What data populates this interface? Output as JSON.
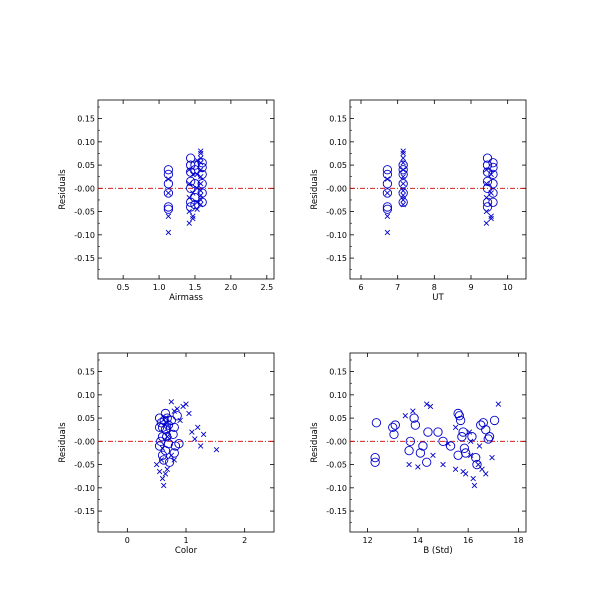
{
  "colors": {
    "marker": "#0000cc",
    "zero_line": "#cc0000",
    "frame": "#000000",
    "background": "#ffffff"
  },
  "chart_data": [
    {
      "type": "scatter",
      "xlabel": "Airmass",
      "ylabel": "Residuals",
      "xlim": [
        0.15,
        2.6
      ],
      "ylim": [
        -0.195,
        0.19
      ],
      "xticks": [
        "0.5",
        "1.0",
        "1.5",
        "2.0",
        "2.5"
      ],
      "yticks": [
        "-0.15",
        "-0.10",
        "-0.05",
        "-0.00",
        "0.05",
        "0.10",
        "0.15"
      ],
      "zero_line": 0,
      "series": [
        {
          "marker": "circle",
          "points": [
            [
              1.13,
              0.04
            ],
            [
              1.13,
              0.03
            ],
            [
              1.13,
              0.01
            ],
            [
              1.13,
              -0.01
            ],
            [
              1.13,
              -0.04
            ],
            [
              1.13,
              -0.045
            ],
            [
              1.44,
              0.065
            ],
            [
              1.44,
              0.05
            ],
            [
              1.44,
              0.035
            ],
            [
              1.44,
              0.015
            ],
            [
              1.44,
              0.0
            ],
            [
              1.44,
              -0.03
            ],
            [
              1.44,
              -0.04
            ],
            [
              1.5,
              0.05
            ],
            [
              1.5,
              0.04
            ],
            [
              1.5,
              0.01
            ],
            [
              1.5,
              -0.02
            ],
            [
              1.5,
              -0.035
            ],
            [
              1.6,
              0.055
            ],
            [
              1.6,
              0.045
            ],
            [
              1.6,
              0.03
            ],
            [
              1.6,
              0.01
            ],
            [
              1.6,
              -0.01
            ],
            [
              1.6,
              -0.03
            ]
          ]
        },
        {
          "marker": "x",
          "points": [
            [
              1.13,
              0.02
            ],
            [
              1.13,
              -0.01
            ],
            [
              1.13,
              -0.06
            ],
            [
              1.13,
              -0.095
            ],
            [
              1.42,
              0.04
            ],
            [
              1.42,
              0.01
            ],
            [
              1.42,
              -0.02
            ],
            [
              1.42,
              -0.05
            ],
            [
              1.42,
              -0.075
            ],
            [
              1.47,
              0.03
            ],
            [
              1.47,
              -0.01
            ],
            [
              1.47,
              -0.06
            ],
            [
              1.47,
              -0.065
            ],
            [
              1.53,
              0.06
            ],
            [
              1.53,
              0.03
            ],
            [
              1.53,
              0.0
            ],
            [
              1.53,
              -0.03
            ],
            [
              1.53,
              -0.045
            ],
            [
              1.58,
              0.08
            ],
            [
              1.58,
              0.075
            ],
            [
              1.58,
              0.065
            ],
            [
              1.58,
              0.055
            ],
            [
              1.58,
              0.04
            ],
            [
              1.58,
              0.025
            ],
            [
              1.58,
              0.01
            ],
            [
              1.58,
              -0.005
            ],
            [
              1.58,
              -0.015
            ],
            [
              1.58,
              -0.025
            ],
            [
              1.58,
              -0.035
            ]
          ]
        }
      ]
    },
    {
      "type": "scatter",
      "xlabel": "UT",
      "ylabel": "Residuals",
      "xlim": [
        5.7,
        10.5
      ],
      "ylim": [
        -0.195,
        0.19
      ],
      "xticks": [
        "6",
        "7",
        "8",
        "9",
        "10"
      ],
      "yticks": [
        "-0.15",
        "-0.10",
        "-0.05",
        "-0.00",
        "0.05",
        "0.10",
        "0.15"
      ],
      "zero_line": 0,
      "series": [
        {
          "marker": "circle",
          "points": [
            [
              6.72,
              0.04
            ],
            [
              6.72,
              0.03
            ],
            [
              6.72,
              0.01
            ],
            [
              6.72,
              -0.01
            ],
            [
              6.72,
              -0.04
            ],
            [
              6.72,
              -0.045
            ],
            [
              7.15,
              0.05
            ],
            [
              7.15,
              0.04
            ],
            [
              7.15,
              0.03
            ],
            [
              7.15,
              0.01
            ],
            [
              7.15,
              -0.01
            ],
            [
              7.15,
              -0.03
            ],
            [
              9.45,
              0.065
            ],
            [
              9.45,
              0.05
            ],
            [
              9.45,
              0.035
            ],
            [
              9.45,
              0.015
            ],
            [
              9.45,
              0.0
            ],
            [
              9.45,
              -0.03
            ],
            [
              9.45,
              -0.04
            ],
            [
              9.6,
              0.055
            ],
            [
              9.6,
              0.045
            ],
            [
              9.6,
              0.03
            ],
            [
              9.6,
              0.01
            ],
            [
              9.6,
              -0.01
            ],
            [
              9.6,
              -0.03
            ]
          ]
        },
        {
          "marker": "x",
          "points": [
            [
              6.72,
              0.02
            ],
            [
              6.72,
              -0.01
            ],
            [
              6.72,
              -0.06
            ],
            [
              6.72,
              -0.095
            ],
            [
              7.15,
              0.08
            ],
            [
              7.15,
              0.075
            ],
            [
              7.15,
              0.065
            ],
            [
              7.15,
              0.055
            ],
            [
              7.15,
              0.04
            ],
            [
              7.15,
              0.025
            ],
            [
              7.15,
              0.01
            ],
            [
              7.15,
              -0.005
            ],
            [
              7.15,
              -0.015
            ],
            [
              7.15,
              -0.025
            ],
            [
              7.15,
              -0.035
            ],
            [
              9.42,
              0.04
            ],
            [
              9.42,
              0.01
            ],
            [
              9.42,
              -0.02
            ],
            [
              9.42,
              -0.05
            ],
            [
              9.42,
              -0.075
            ],
            [
              9.55,
              0.03
            ],
            [
              9.55,
              -0.01
            ],
            [
              9.55,
              -0.06
            ],
            [
              9.55,
              -0.065
            ]
          ]
        }
      ]
    },
    {
      "type": "scatter",
      "xlabel": "Color",
      "ylabel": "Residuals",
      "xlim": [
        -0.5,
        2.5
      ],
      "ylim": [
        -0.195,
        0.19
      ],
      "xticks": [
        "0",
        "1",
        "2"
      ],
      "yticks": [
        "-0.15",
        "-0.10",
        "-0.05",
        "-0.00",
        "0.05",
        "0.10",
        "0.15"
      ],
      "zero_line": 0,
      "series": [
        {
          "marker": "circle",
          "points": [
            [
              0.55,
              0.05
            ],
            [
              0.58,
              0.04
            ],
            [
              0.55,
              0.03
            ],
            [
              0.6,
              0.01
            ],
            [
              0.57,
              0.0
            ],
            [
              0.55,
              -0.01
            ],
            [
              0.6,
              -0.03
            ],
            [
              0.62,
              -0.04
            ],
            [
              0.65,
              0.06
            ],
            [
              0.68,
              0.05
            ],
            [
              0.7,
              0.035
            ],
            [
              0.65,
              0.025
            ],
            [
              0.67,
              0.01
            ],
            [
              0.7,
              -0.005
            ],
            [
              0.65,
              -0.02
            ],
            [
              0.72,
              -0.045
            ],
            [
              0.75,
              0.045
            ],
            [
              0.8,
              0.03
            ],
            [
              0.78,
              0.015
            ],
            [
              0.82,
              -0.01
            ],
            [
              0.8,
              -0.025
            ],
            [
              0.6,
              0.03
            ],
            [
              0.63,
              0.045
            ],
            [
              0.85,
              0.055
            ],
            [
              0.88,
              -0.005
            ]
          ]
        },
        {
          "marker": "x",
          "points": [
            [
              0.5,
              -0.05
            ],
            [
              0.55,
              -0.065
            ],
            [
              0.6,
              -0.08
            ],
            [
              0.62,
              -0.095
            ],
            [
              0.65,
              -0.07
            ],
            [
              0.68,
              -0.06
            ],
            [
              0.7,
              0.02
            ],
            [
              0.72,
              0.005
            ],
            [
              0.75,
              0.085
            ],
            [
              0.8,
              0.065
            ],
            [
              0.85,
              0.07
            ],
            [
              0.9,
              0.045
            ],
            [
              0.95,
              0.075
            ],
            [
              1.0,
              0.08
            ],
            [
              1.05,
              0.06
            ],
            [
              1.1,
              0.02
            ],
            [
              1.15,
              0.005
            ],
            [
              1.2,
              0.03
            ],
            [
              1.25,
              -0.01
            ],
            [
              1.3,
              0.015
            ],
            [
              1.52,
              -0.018
            ],
            [
              0.65,
              0.05
            ],
            [
              0.7,
              0.035
            ],
            [
              0.6,
              -0.015
            ],
            [
              0.75,
              -0.03
            ],
            [
              0.8,
              -0.04
            ],
            [
              0.58,
              -0.04
            ],
            [
              0.68,
              0.01
            ]
          ]
        }
      ]
    },
    {
      "type": "scatter",
      "xlabel": "B (Std)",
      "ylabel": "Residuals",
      "xlim": [
        11.3,
        18.3
      ],
      "ylim": [
        -0.195,
        0.19
      ],
      "xticks": [
        "12",
        "14",
        "16",
        "18"
      ],
      "yticks": [
        "-0.15",
        "-0.10",
        "-0.05",
        "-0.00",
        "0.05",
        "0.10",
        "0.15"
      ],
      "zero_line": 0,
      "series": [
        {
          "marker": "circle",
          "points": [
            [
              12.35,
              0.04
            ],
            [
              12.3,
              -0.035
            ],
            [
              12.3,
              -0.045
            ],
            [
              13.0,
              0.03
            ],
            [
              13.1,
              0.035
            ],
            [
              13.05,
              0.015
            ],
            [
              13.65,
              -0.02
            ],
            [
              13.7,
              0.0
            ],
            [
              13.85,
              0.05
            ],
            [
              13.9,
              0.035
            ],
            [
              14.1,
              -0.025
            ],
            [
              14.2,
              -0.01
            ],
            [
              14.35,
              -0.045
            ],
            [
              14.4,
              0.02
            ],
            [
              14.8,
              0.02
            ],
            [
              15.0,
              0.0
            ],
            [
              15.3,
              -0.01
            ],
            [
              15.6,
              0.06
            ],
            [
              15.65,
              0.055
            ],
            [
              15.7,
              0.045
            ],
            [
              15.8,
              0.02
            ],
            [
              15.85,
              -0.015
            ],
            [
              15.9,
              -0.025
            ],
            [
              16.15,
              0.01
            ],
            [
              16.3,
              -0.035
            ],
            [
              16.35,
              -0.05
            ],
            [
              16.5,
              0.035
            ],
            [
              16.6,
              0.04
            ],
            [
              16.7,
              0.025
            ],
            [
              16.8,
              0.005
            ],
            [
              16.85,
              0.01
            ],
            [
              17.05,
              0.045
            ],
            [
              15.6,
              -0.03
            ],
            [
              15.75,
              0.01
            ]
          ]
        },
        {
          "marker": "x",
          "points": [
            [
              13.5,
              0.055
            ],
            [
              13.65,
              -0.05
            ],
            [
              13.8,
              0.065
            ],
            [
              14.0,
              -0.055
            ],
            [
              14.35,
              0.08
            ],
            [
              14.5,
              0.075
            ],
            [
              14.6,
              -0.03
            ],
            [
              15.0,
              -0.05
            ],
            [
              15.2,
              -0.005
            ],
            [
              15.5,
              -0.06
            ],
            [
              15.8,
              -0.065
            ],
            [
              15.9,
              -0.07
            ],
            [
              16.05,
              0.02
            ],
            [
              16.1,
              -0.03
            ],
            [
              16.2,
              -0.08
            ],
            [
              16.25,
              -0.095
            ],
            [
              16.4,
              -0.05
            ],
            [
              16.45,
              -0.01
            ],
            [
              16.7,
              -0.07
            ],
            [
              16.95,
              -0.035
            ],
            [
              17.2,
              0.08
            ],
            [
              16.1,
              0.0
            ],
            [
              16.55,
              -0.06
            ],
            [
              15.5,
              0.03
            ]
          ]
        }
      ]
    }
  ]
}
